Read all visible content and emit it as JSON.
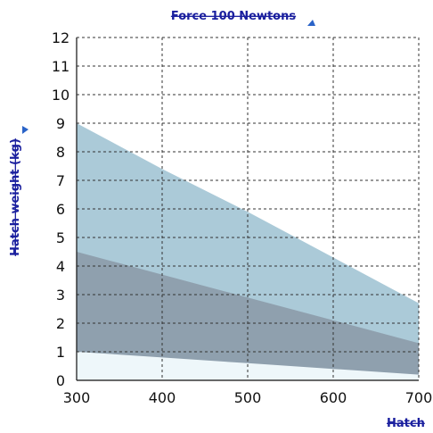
{
  "chart_data": {
    "type": "area",
    "title": "Force 100  Newtons",
    "xlabel": "Hatch",
    "ylabel": "Hatch weight (kg)",
    "xlim": [
      300,
      700
    ],
    "ylim": [
      0,
      12
    ],
    "xticks": [
      "300",
      "400",
      "500",
      "600",
      "700"
    ],
    "yticks": [
      "0",
      "1",
      "2",
      "3",
      "4",
      "5",
      "6",
      "7",
      "8",
      "9",
      "10",
      "11",
      "12"
    ],
    "grid": true,
    "x": [
      300,
      400,
      500,
      600,
      700
    ],
    "series": [
      {
        "values": [
          9.0,
          7.4,
          5.9,
          4.3,
          2.7
        ],
        "color": "#abcad8"
      },
      {
        "values": [
          4.5,
          3.7,
          2.9,
          2.1,
          1.3
        ],
        "color": "#8fa0ae"
      },
      {
        "values": [
          1.0,
          0.8,
          0.6,
          0.4,
          0.2
        ],
        "color": "#eef7fa"
      }
    ],
    "colors": {
      "grid": "#333333",
      "axis": "#111111",
      "title": "#1a1f9e",
      "marker": "#2a63c8"
    }
  }
}
